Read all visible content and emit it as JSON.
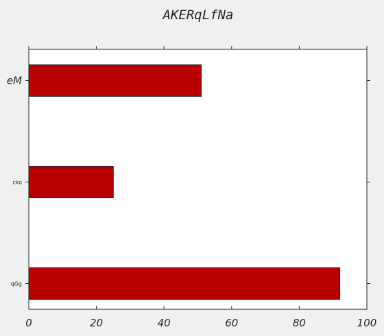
{
  "chart_data": {
    "type": "bar",
    "orientation": "horizontal",
    "title": "AKERqLfNa",
    "categories": [
      "eM",
      "cko",
      "qGg"
    ],
    "values": [
      51,
      25,
      92
    ],
    "xlim": [
      0,
      100
    ],
    "xticks": [
      "0",
      "20",
      "40",
      "60",
      "80",
      "100"
    ],
    "xlabel": "",
    "ylabel": "",
    "grid": false,
    "legend": "none",
    "bar_color": "#b80000",
    "plot_background": "#ffffff",
    "figure_background": "#f0f0f0"
  }
}
